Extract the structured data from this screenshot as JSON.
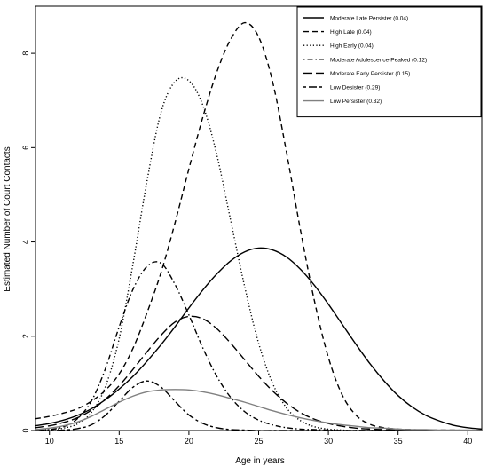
{
  "chart_data": {
    "type": "line",
    "title": "",
    "xlabel": "Age in years",
    "ylabel": "Estimated Number of Court Contacts",
    "xlim": [
      9,
      41
    ],
    "ylim": [
      0,
      9
    ],
    "xticks": [
      10,
      15,
      20,
      25,
      30,
      35,
      40
    ],
    "yticks": [
      0,
      2,
      4,
      6,
      8
    ],
    "grid": false,
    "legend_position": "top-right",
    "x": [
      9,
      10,
      11,
      12,
      13,
      14,
      15,
      16,
      17,
      18,
      19,
      20,
      21,
      22,
      23,
      24,
      25,
      26,
      27,
      28,
      29,
      30,
      31,
      32,
      33,
      34,
      35,
      36,
      37,
      38,
      39,
      40,
      41
    ],
    "series": [
      {
        "name": "Moderate Late Persister (0.04)",
        "line_style": "solid",
        "color": "#000000",
        "values": [
          0.1,
          0.15,
          0.22,
          0.32,
          0.46,
          0.65,
          0.88,
          1.15,
          1.47,
          1.82,
          2.2,
          2.6,
          2.98,
          3.32,
          3.6,
          3.79,
          3.87,
          3.83,
          3.68,
          3.42,
          3.08,
          2.68,
          2.25,
          1.82,
          1.41,
          1.05,
          0.74,
          0.5,
          0.32,
          0.2,
          0.11,
          0.06,
          0.03
        ]
      },
      {
        "name": "High Late (0.04)",
        "line_style": "dashed",
        "color": "#000000",
        "values": [
          0.25,
          0.3,
          0.37,
          0.46,
          0.62,
          0.85,
          1.2,
          1.75,
          2.5,
          3.35,
          4.4,
          5.55,
          6.65,
          7.6,
          8.3,
          8.65,
          8.35,
          7.4,
          5.9,
          4.25,
          2.75,
          1.55,
          0.75,
          0.32,
          0.13,
          0.06,
          0.03,
          0.02,
          0.01,
          0.01,
          0.01,
          0.0,
          0.0
        ]
      },
      {
        "name": "High Early (0.04)",
        "line_style": "dotted",
        "color": "#000000",
        "values": [
          0.0,
          0.02,
          0.05,
          0.14,
          0.38,
          0.92,
          1.95,
          3.55,
          5.3,
          6.75,
          7.4,
          7.42,
          6.9,
          5.85,
          4.45,
          3.05,
          1.85,
          1.0,
          0.48,
          0.21,
          0.08,
          0.03,
          0.01,
          0.0,
          0.0,
          0.0,
          0.0,
          0.0,
          0.0,
          0.0,
          0.0,
          0.0,
          0.0
        ]
      },
      {
        "name": "Moderate Adolescence-Peaked (0.12)",
        "line_style": "dotdash",
        "color": "#000000",
        "values": [
          0.0,
          0.02,
          0.08,
          0.25,
          0.62,
          1.3,
          2.2,
          3.0,
          3.48,
          3.55,
          3.1,
          2.45,
          1.75,
          1.15,
          0.7,
          0.4,
          0.22,
          0.12,
          0.06,
          0.03,
          0.02,
          0.01,
          0.0,
          0.0,
          0.0,
          0.0,
          0.0,
          0.0,
          0.0,
          0.0,
          0.0,
          0.0,
          0.0
        ]
      },
      {
        "name": "Moderate Early Persister (0.15)",
        "line_style": "longdash",
        "color": "#000000",
        "values": [
          0.06,
          0.1,
          0.17,
          0.27,
          0.43,
          0.66,
          0.95,
          1.3,
          1.67,
          2.02,
          2.3,
          2.42,
          2.37,
          2.16,
          1.85,
          1.5,
          1.15,
          0.84,
          0.58,
          0.38,
          0.24,
          0.15,
          0.09,
          0.05,
          0.03,
          0.02,
          0.01,
          0.01,
          0.0,
          0.0,
          0.0,
          0.0,
          0.0
        ]
      },
      {
        "name": "Low Desister (0.29)",
        "line_style": "twodash",
        "color": "#000000",
        "values": [
          0.0,
          0.0,
          0.01,
          0.04,
          0.12,
          0.32,
          0.62,
          0.92,
          1.05,
          0.92,
          0.62,
          0.33,
          0.15,
          0.06,
          0.02,
          0.01,
          0.0,
          0.0,
          0.0,
          0.0,
          0.0,
          0.0,
          0.0,
          0.0,
          0.0,
          0.0,
          0.0,
          0.0,
          0.0,
          0.0,
          0.0,
          0.0,
          0.0
        ]
      },
      {
        "name": "Low Persister (0.32)",
        "line_style": "solid",
        "color": "#808080",
        "values": [
          0.02,
          0.05,
          0.1,
          0.18,
          0.3,
          0.45,
          0.6,
          0.73,
          0.82,
          0.86,
          0.87,
          0.86,
          0.82,
          0.76,
          0.68,
          0.6,
          0.51,
          0.42,
          0.34,
          0.27,
          0.21,
          0.16,
          0.12,
          0.09,
          0.06,
          0.05,
          0.03,
          0.02,
          0.02,
          0.01,
          0.01,
          0.01,
          0.0
        ]
      }
    ]
  }
}
